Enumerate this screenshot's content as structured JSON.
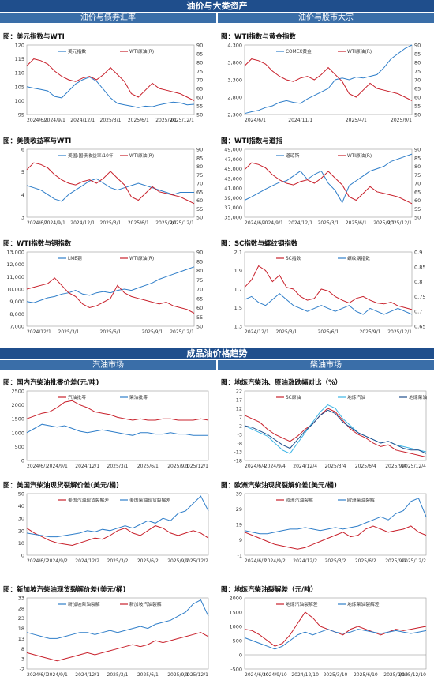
{
  "sections": {
    "top_banner": "油价与大类资产",
    "top_left_sub": "油价与债券汇率",
    "top_right_sub": "油价与股市大宗",
    "mid_banner": "成品油价格趋势",
    "mid_left_sub": "汽油市场",
    "mid_right_sub": "柴油市场"
  },
  "colors": {
    "blue": "#2f7ec9",
    "red": "#c8202b",
    "light_blue": "#3bb5e6",
    "dark_blue": "#1f4e8c",
    "black": "#222222"
  },
  "chart_data": [
    {
      "type": "line",
      "title": "图：美元指数与WTI",
      "x_labels": [
        "2024/6/1",
        "2024/9/1",
        "2024/12/1",
        "2025/3/1",
        "2025/6/1",
        "2025/9/1",
        "2025/12/1"
      ],
      "y_left": [
        95,
        100,
        105,
        110,
        115,
        120
      ],
      "y_right": [
        50,
        55,
        60,
        65,
        70,
        75,
        80,
        85,
        90
      ],
      "series": [
        {
          "name": "美元指数",
          "axis": "left",
          "color": "#2f7ec9",
          "values": [
            105,
            104.5,
            104,
            103.5,
            101.5,
            101,
            103.5,
            106,
            107.5,
            108.5,
            107,
            104,
            101,
            99,
            98.5,
            98,
            97.5,
            98,
            97.8,
            98.5,
            99,
            99.5,
            99.2,
            98.5,
            98.7
          ]
        },
        {
          "name": "WTI原油(R)",
          "axis": "right",
          "color": "#c8202b",
          "values": [
            78,
            82,
            81,
            79,
            75,
            72,
            70,
            69,
            71,
            72,
            70,
            73,
            77,
            73,
            69,
            62,
            60,
            64,
            68,
            65,
            64,
            63,
            62,
            60,
            58
          ]
        }
      ]
    },
    {
      "type": "line",
      "title": "图：WTI指数与黄金指数",
      "x_labels": [
        "2024/6/1",
        "2024/11/1",
        "2025/4/1",
        "2025/9/1"
      ],
      "y_left": [
        "2,300",
        "2,800",
        "3,300",
        "3,800",
        "4,300"
      ],
      "y_right": [
        50,
        55,
        60,
        65,
        70,
        75,
        80,
        85,
        90
      ],
      "series": [
        {
          "name": "COMEX黄金",
          "axis": "left",
          "color": "#2f7ec9",
          "values": [
            2330,
            2380,
            2420,
            2500,
            2550,
            2650,
            2700,
            2650,
            2620,
            2750,
            2850,
            2950,
            3050,
            3300,
            3350,
            3300,
            3380,
            3350,
            3400,
            3450,
            3650,
            3900,
            4050,
            4200,
            4300
          ]
        },
        {
          "name": "WTI原油(R)",
          "axis": "right",
          "color": "#c8202b",
          "values": [
            78,
            82,
            81,
            79,
            75,
            72,
            70,
            69,
            71,
            72,
            70,
            73,
            77,
            73,
            69,
            62,
            60,
            64,
            68,
            65,
            64,
            63,
            62,
            60,
            58
          ]
        }
      ]
    },
    {
      "type": "line",
      "title": "图：美债收益率与WTI",
      "x_labels": [
        "2024/6/1",
        "2024/9/1",
        "2024/12/1",
        "2025/3/1",
        "2025/6/1",
        "2025/9/1",
        "2025/12/1"
      ],
      "y_left": [
        3,
        4,
        5,
        6
      ],
      "y_right": [
        50,
        55,
        60,
        65,
        70,
        75,
        80,
        85,
        90
      ],
      "series": [
        {
          "name": "美国:国债收益率:10年",
          "axis": "left",
          "color": "#2f7ec9",
          "values": [
            4.4,
            4.3,
            4.2,
            4.0,
            3.8,
            3.7,
            4.0,
            4.2,
            4.4,
            4.6,
            4.7,
            4.5,
            4.3,
            4.2,
            4.3,
            4.4,
            4.5,
            4.4,
            4.3,
            4.2,
            4.1,
            4.0,
            4.1,
            4.1,
            4.1
          ]
        },
        {
          "name": "WTI原油(R)",
          "axis": "right",
          "color": "#c8202b",
          "values": [
            78,
            82,
            81,
            79,
            75,
            72,
            70,
            69,
            71,
            72,
            70,
            73,
            77,
            73,
            69,
            62,
            60,
            64,
            68,
            65,
            64,
            63,
            62,
            60,
            58
          ]
        }
      ]
    },
    {
      "type": "line",
      "title": "图：WTI指数与道指",
      "x_labels": [
        "2024/6/1",
        "2024/9/1",
        "2024/12/1",
        "2025/3/1",
        "2025/6/1",
        "2025/9/1",
        "2025/12/1"
      ],
      "y_left": [
        "35,000",
        "37,000",
        "39,000",
        "41,000",
        "43,000",
        "45,000",
        "47,000",
        "49,000"
      ],
      "y_right": [
        50,
        55,
        60,
        65,
        70,
        75,
        80,
        85,
        90
      ],
      "series": [
        {
          "name": "道琼斯",
          "axis": "left",
          "color": "#2f7ec9",
          "values": [
            38500,
            39200,
            40000,
            40800,
            41500,
            42200,
            42500,
            43500,
            44500,
            42800,
            43800,
            44500,
            42000,
            40500,
            38000,
            41500,
            42500,
            43500,
            44500,
            45000,
            45500,
            46500,
            47000,
            47500,
            48000
          ]
        },
        {
          "name": "WTI原油(R)",
          "axis": "right",
          "color": "#c8202b",
          "values": [
            78,
            82,
            81,
            79,
            75,
            72,
            70,
            69,
            71,
            72,
            70,
            73,
            77,
            73,
            69,
            62,
            60,
            64,
            68,
            65,
            64,
            63,
            62,
            60,
            58
          ]
        }
      ]
    },
    {
      "type": "line",
      "title": "图：WTI指数与铜指数",
      "x_labels": [
        "2024/12/1",
        "2025/3/1",
        "2025/6/1",
        "2025/9/1",
        "2025/12/1"
      ],
      "y_left": [
        "7,000",
        "8,000",
        "9,000",
        "10,000",
        "11,000",
        "12,000",
        "13,000"
      ],
      "y_right": [
        50,
        55,
        60,
        65,
        70,
        75,
        80,
        85,
        90
      ],
      "series": [
        {
          "name": "LME铜",
          "axis": "left",
          "color": "#2f7ec9",
          "values": [
            9000,
            8900,
            9100,
            9300,
            9400,
            9600,
            9700,
            9900,
            9600,
            9500,
            9700,
            9800,
            9700,
            9900,
            10000,
            9900,
            10100,
            10300,
            10500,
            10800,
            11000,
            11200,
            11400,
            11600,
            11800
          ]
        },
        {
          "name": "WTI原油(R)",
          "axis": "right",
          "color": "#c8202b",
          "values": [
            70,
            71,
            72,
            73,
            76,
            72,
            68,
            66,
            62,
            60,
            61,
            63,
            65,
            72,
            68,
            66,
            65,
            64,
            63,
            62,
            63,
            61,
            60,
            59,
            57
          ]
        }
      ]
    },
    {
      "type": "line",
      "title": "图：SC指数与螺纹钢指数",
      "x_labels": [
        "2024/12/1",
        "2025/3/1",
        "2025/6/1",
        "2025/9/1",
        "2025/12/1"
      ],
      "y_left": [
        1.3,
        1.5,
        1.7,
        1.9,
        2.1
      ],
      "y_right": [
        0.65,
        0.7,
        0.75,
        0.8,
        0.85,
        0.9
      ],
      "series": [
        {
          "name": "SC指数",
          "axis": "left",
          "color": "#c8202b",
          "values": [
            1.72,
            1.8,
            1.95,
            1.9,
            1.78,
            1.85,
            1.72,
            1.7,
            1.62,
            1.58,
            1.6,
            1.7,
            1.68,
            1.62,
            1.58,
            1.55,
            1.6,
            1.62,
            1.58,
            1.55,
            1.54,
            1.56,
            1.52,
            1.5,
            1.48
          ]
        },
        {
          "name": "螺纹钢指数",
          "axis": "right",
          "color": "#2f7ec9",
          "values": [
            0.74,
            0.75,
            0.73,
            0.72,
            0.74,
            0.76,
            0.74,
            0.72,
            0.71,
            0.7,
            0.71,
            0.72,
            0.71,
            0.7,
            0.71,
            0.72,
            0.7,
            0.69,
            0.71,
            0.7,
            0.69,
            0.7,
            0.71,
            0.7,
            0.69
          ]
        }
      ]
    },
    {
      "type": "line",
      "title": "图：国内汽柴油批零价差(元/吨)",
      "x_labels": [
        "2024/6/1",
        "2024/9/1",
        "2024/12/1",
        "2025/3/1",
        "2025/6/1",
        "2025/9/1",
        "2025/12/1"
      ],
      "y_left": [
        0,
        500,
        1000,
        1500,
        2000,
        2500
      ],
      "series": [
        {
          "name": "汽油批零",
          "axis": "left",
          "color": "#c8202b",
          "values": [
            1500,
            1600,
            1700,
            1750,
            1900,
            2100,
            2150,
            2000,
            1900,
            1750,
            1700,
            1650,
            1550,
            1500,
            1450,
            1500,
            1450,
            1450,
            1500,
            1500,
            1450,
            1450,
            1450,
            1500,
            1450
          ]
        },
        {
          "name": "柴油批零",
          "axis": "left",
          "color": "#2f7ec9",
          "values": [
            1000,
            1150,
            1300,
            1250,
            1200,
            1250,
            1150,
            1050,
            1000,
            1050,
            1100,
            1050,
            1000,
            950,
            900,
            1000,
            1000,
            950,
            950,
            1000,
            950,
            950,
            900,
            900,
            900
          ]
        }
      ]
    },
    {
      "type": "line",
      "title": "图：地炼汽柴油、原油涨跌幅对比（%）",
      "x_labels": [
        "2024/6/4",
        "2024/9/4",
        "2024/12/4",
        "2025/3/4",
        "2025/6/4",
        "2025/9/4",
        "2025/12/4"
      ],
      "y_left": [
        -18,
        -13,
        -8,
        -3,
        2,
        7,
        12,
        17,
        22
      ],
      "series": [
        {
          "name": "SC原油",
          "axis": "left",
          "color": "#c8202b",
          "values": [
            8,
            6,
            4,
            0,
            -3,
            -5,
            -7,
            -4,
            0,
            3,
            8,
            12,
            10,
            5,
            0,
            -3,
            -5,
            -8,
            -10,
            -9,
            -12,
            -13,
            -14,
            -15,
            -16
          ]
        },
        {
          "name": "地炼汽油",
          "axis": "left",
          "color": "#3bb5e6",
          "values": [
            2,
            0,
            -2,
            -4,
            -8,
            -12,
            -14,
            -8,
            -2,
            4,
            10,
            14,
            12,
            6,
            2,
            -2,
            -4,
            -6,
            -8,
            -7,
            -9,
            -10,
            -11,
            -12,
            -13
          ]
        },
        {
          "name": "地炼柴油",
          "axis": "left",
          "color": "#1f4e8c",
          "values": [
            2,
            1,
            -1,
            -3,
            -6,
            -9,
            -11,
            -6,
            -1,
            3,
            8,
            11,
            9,
            4,
            1,
            -2,
            -4,
            -6,
            -8,
            -7,
            -9,
            -11,
            -12,
            -12,
            -14
          ]
        }
      ]
    },
    {
      "type": "line",
      "title": "图：美国汽柴油现货裂解价差(美元/桶)",
      "x_labels": [
        "2024/6/2",
        "2024/9/2",
        "2024/12/2",
        "2025/3/2",
        "2025/6/2",
        "2025/9/2",
        "2025/12/2"
      ],
      "y_left": [
        0,
        10,
        20,
        30,
        40,
        50
      ],
      "series": [
        {
          "name": "美国汽油现货裂解差",
          "axis": "left",
          "color": "#c8202b",
          "values": [
            22,
            18,
            15,
            12,
            10,
            9,
            8,
            10,
            12,
            14,
            13,
            16,
            20,
            22,
            18,
            16,
            20,
            24,
            22,
            18,
            16,
            18,
            20,
            18,
            14
          ]
        },
        {
          "name": "美国柴油现货裂解差",
          "axis": "left",
          "color": "#2f7ec9",
          "values": [
            18,
            17,
            16,
            15,
            15,
            16,
            17,
            18,
            20,
            19,
            21,
            20,
            22,
            24,
            22,
            25,
            28,
            26,
            30,
            28,
            34,
            36,
            42,
            48,
            36
          ]
        }
      ]
    },
    {
      "type": "line",
      "title": "图：欧洲汽柴油现货裂解价差(美元/桶)",
      "x_labels": [
        "2024/6/2",
        "2024/9/2",
        "2024/12/2",
        "2025/3/2",
        "2025/6/2",
        "2025/9/2",
        "2025/12/2"
      ],
      "y_left": [
        -1,
        9,
        19,
        29,
        39
      ],
      "series": [
        {
          "name": "欧洲汽油裂解",
          "axis": "left",
          "color": "#c8202b",
          "values": [
            14,
            12,
            10,
            8,
            6,
            5,
            4,
            3,
            4,
            6,
            8,
            10,
            12,
            14,
            11,
            12,
            16,
            18,
            16,
            14,
            15,
            16,
            18,
            14,
            12
          ]
        },
        {
          "name": "欧洲柴油裂解",
          "axis": "left",
          "color": "#2f7ec9",
          "values": [
            15,
            14,
            13,
            13,
            14,
            15,
            16,
            16,
            17,
            16,
            15,
            16,
            17,
            16,
            17,
            18,
            20,
            22,
            24,
            22,
            26,
            28,
            34,
            36,
            24
          ]
        }
      ]
    },
    {
      "type": "line",
      "title": "图：新加坡汽柴油现货裂解价差(美元/桶)",
      "x_labels": [
        "2024/6/1",
        "2024/9/1",
        "2024/12/1",
        "2025/3/1",
        "2025/6/1",
        "2025/9/1",
        "2025/12/1"
      ],
      "y_left": [
        -2,
        3,
        8,
        13,
        18,
        23,
        28,
        33
      ],
      "series": [
        {
          "name": "新加坡柴油裂解",
          "axis": "left",
          "color": "#2f7ec9",
          "values": [
            16,
            15,
            14,
            13,
            13,
            14,
            15,
            16,
            16,
            15,
            16,
            17,
            16,
            17,
            18,
            19,
            18,
            20,
            21,
            22,
            24,
            26,
            30,
            32,
            24
          ]
        },
        {
          "name": "新加坡汽油裂解",
          "axis": "left",
          "color": "#c8202b",
          "values": [
            6,
            5,
            4,
            3,
            2,
            3,
            4,
            5,
            6,
            5,
            6,
            7,
            8,
            9,
            10,
            9,
            10,
            12,
            11,
            12,
            13,
            14,
            15,
            16,
            14
          ]
        }
      ]
    },
    {
      "type": "line",
      "title": "图：地炼汽柴油裂解差（元/吨）",
      "x_labels": [
        "2024/6/10",
        "2024/9/10",
        "2024/12/10",
        "2025/3/10",
        "2025/6/10",
        "2025/9/10",
        "2025/12/10"
      ],
      "y_left": [
        -500,
        0,
        500,
        1000,
        1500,
        2000
      ],
      "series": [
        {
          "name": "地炼汽油裂解差",
          "axis": "left",
          "color": "#c8202b",
          "values": [
            900,
            850,
            700,
            500,
            300,
            400,
            700,
            1100,
            1500,
            1300,
            1000,
            900,
            800,
            700,
            900,
            1000,
            900,
            800,
            700,
            800,
            900,
            850,
            900,
            950,
            1000
          ]
        },
        {
          "name": "地炼柴油裂解差",
          "axis": "left",
          "color": "#2f7ec9",
          "values": [
            600,
            500,
            400,
            300,
            200,
            300,
            500,
            700,
            800,
            700,
            800,
            900,
            800,
            750,
            800,
            900,
            850,
            800,
            750,
            800,
            850,
            800,
            750,
            800,
            850
          ]
        }
      ]
    }
  ]
}
